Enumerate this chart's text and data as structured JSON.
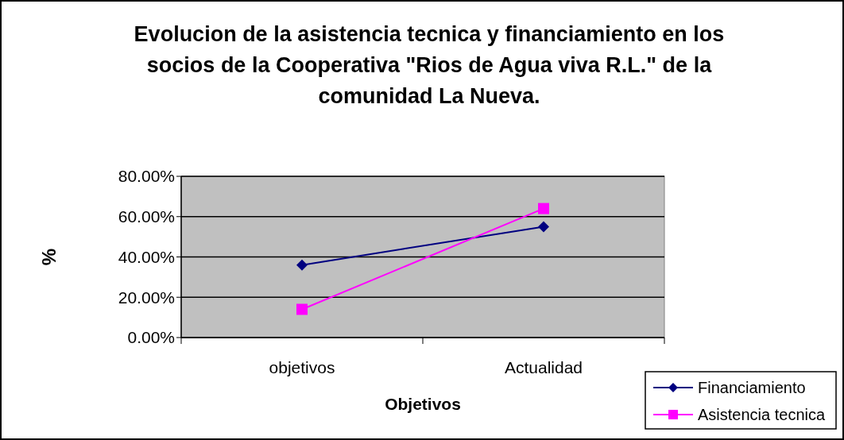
{
  "chart_data": {
    "type": "line",
    "title": "Evolucion de la asistencia tecnica y financiamiento en los socios de la Cooperativa \"Rios de Agua viva R.L.\" de la comunidad La Nueva.",
    "xlabel": "Objetivos",
    "ylabel": "%",
    "categories": [
      "objetivos",
      "Actualidad"
    ],
    "series": [
      {
        "name": "Financiamiento",
        "color": "#000080",
        "marker": "diamond",
        "values": [
          36,
          55
        ]
      },
      {
        "name": "Asistencia tecnica",
        "color": "#ff00ff",
        "marker": "square",
        "values": [
          14,
          64
        ]
      }
    ],
    "ylim": [
      0,
      80
    ],
    "yticks": [
      {
        "value": 0,
        "label": "0.00%"
      },
      {
        "value": 20,
        "label": "20.00%"
      },
      {
        "value": 40,
        "label": "40.00%"
      },
      {
        "value": 60,
        "label": "60.00%"
      },
      {
        "value": 80,
        "label": "80.00%"
      }
    ],
    "grid": "y",
    "legend": "bottom right"
  }
}
